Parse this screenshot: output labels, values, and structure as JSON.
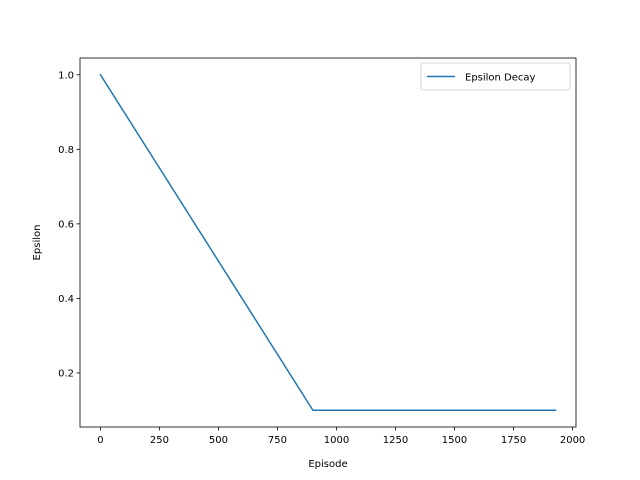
{
  "chart_data": {
    "type": "line",
    "title": "",
    "xlabel": "Episode",
    "ylabel": "Epsilon",
    "xlim": [
      -86.5,
      2014.5
    ],
    "ylim": [
      0.055,
      1.045
    ],
    "xticks": [
      0,
      250,
      500,
      750,
      1000,
      1250,
      1500,
      1750,
      2000
    ],
    "yticks": [
      0.2,
      0.4,
      0.6,
      0.8,
      1.0
    ],
    "xtick_labels": [
      "0",
      "250",
      "500",
      "750",
      "1000",
      "1250",
      "1500",
      "1750",
      "2000"
    ],
    "ytick_labels": [
      "0.2",
      "0.4",
      "0.6",
      "0.8",
      "1.0"
    ],
    "grid": false,
    "legend_position": "top-right",
    "series": [
      {
        "name": "Epsilon Decay",
        "color": "#1f77b4",
        "x": [
          0,
          900,
          1928
        ],
        "y": [
          1.0,
          0.1,
          0.1
        ]
      }
    ]
  }
}
